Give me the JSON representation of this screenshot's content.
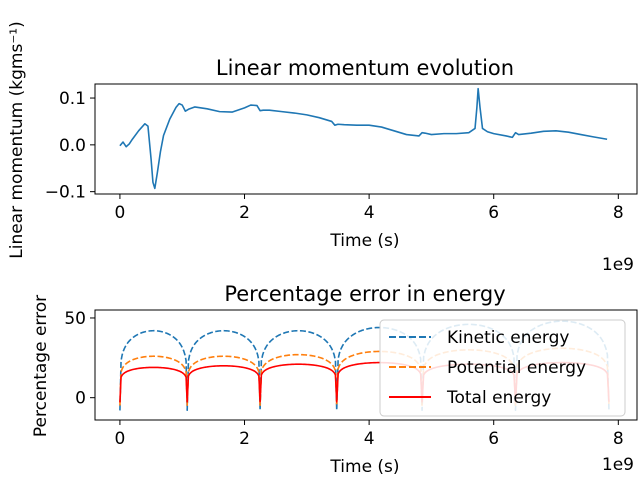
{
  "chart_data": [
    {
      "type": "line",
      "title": "Linear momentum evolution",
      "xlabel": "Time (s)",
      "ylabel": "Linear momentum (kgms⁻¹)",
      "x_offset_label": "1e9",
      "xlim": [
        -0.4,
        8.3
      ],
      "ylim": [
        -0.105,
        0.13
      ],
      "xticks": [
        0,
        2,
        4,
        6,
        8
      ],
      "xtick_labels": [
        "0",
        "2",
        "4",
        "6",
        "8"
      ],
      "yticks": [
        -0.1,
        0.0,
        0.1
      ],
      "ytick_labels": [
        "−0.1",
        "0.0",
        "0.1"
      ],
      "grid": false,
      "series": [
        {
          "color": "#1f77b4",
          "dash": "solid",
          "x": [
            0,
            0.05,
            0.1,
            0.15,
            0.2,
            0.3,
            0.4,
            0.45,
            0.5,
            0.53,
            0.56,
            0.6,
            0.65,
            0.7,
            0.8,
            0.9,
            0.95,
            1.0,
            1.05,
            1.1,
            1.2,
            1.4,
            1.6,
            1.8,
            2.0,
            2.1,
            2.2,
            2.25,
            2.3,
            2.4,
            2.6,
            2.8,
            3.0,
            3.2,
            3.4,
            3.45,
            3.5,
            3.6,
            3.8,
            4.0,
            4.2,
            4.4,
            4.6,
            4.8,
            4.85,
            4.9,
            5.0,
            5.2,
            5.4,
            5.6,
            5.7,
            5.73,
            5.75,
            5.78,
            5.82,
            5.9,
            6.0,
            6.2,
            6.3,
            6.35,
            6.4,
            6.6,
            6.8,
            7.0,
            7.2,
            7.4,
            7.6,
            7.82
          ],
          "y": [
            -0.002,
            0.006,
            -0.004,
            0.002,
            0.012,
            0.03,
            0.045,
            0.04,
            -0.03,
            -0.08,
            -0.093,
            -0.06,
            -0.015,
            0.02,
            0.055,
            0.08,
            0.088,
            0.085,
            0.072,
            0.076,
            0.081,
            0.077,
            0.071,
            0.07,
            0.079,
            0.085,
            0.084,
            0.073,
            0.074,
            0.074,
            0.071,
            0.068,
            0.064,
            0.058,
            0.05,
            0.042,
            0.044,
            0.043,
            0.042,
            0.042,
            0.038,
            0.03,
            0.022,
            0.019,
            0.026,
            0.025,
            0.022,
            0.024,
            0.024,
            0.026,
            0.035,
            0.08,
            0.12,
            0.08,
            0.035,
            0.028,
            0.024,
            0.019,
            0.016,
            0.026,
            0.022,
            0.025,
            0.029,
            0.03,
            0.027,
            0.022,
            0.017,
            0.012
          ]
        }
      ]
    },
    {
      "type": "line",
      "title": "Percentage error in energy",
      "xlabel": "Time (s)",
      "ylabel": "Percentage error",
      "x_offset_label": "1e9",
      "xlim": [
        -0.4,
        8.3
      ],
      "ylim": [
        -14,
        55
      ],
      "xticks": [
        0,
        2,
        4,
        6,
        8
      ],
      "xtick_labels": [
        "0",
        "2",
        "4",
        "6",
        "8"
      ],
      "yticks": [
        0,
        50
      ],
      "ytick_labels": [
        "0",
        "50"
      ],
      "grid": false,
      "legend_position": "lower-right",
      "cycles": {
        "minima_x": [
          0.0,
          1.08,
          2.25,
          3.48,
          4.85,
          6.35,
          7.85
        ],
        "kinetic_peaks": [
          42,
          42,
          42,
          44,
          46,
          48
        ],
        "potential_peaks": [
          26,
          26,
          27,
          29,
          30,
          31
        ],
        "total_peaks": [
          19,
          20,
          21,
          22,
          21,
          22
        ]
      },
      "series": [
        {
          "name": "Kinetic energy",
          "color": "#1f77b4",
          "dash": "dashed",
          "min_value": -8
        },
        {
          "name": "Potential energy",
          "color": "#ff7f0e",
          "dash": "dashed",
          "min_value": -5
        },
        {
          "name": "Total energy",
          "color": "#ff0000",
          "dash": "solid",
          "min_value": -3
        }
      ]
    }
  ]
}
